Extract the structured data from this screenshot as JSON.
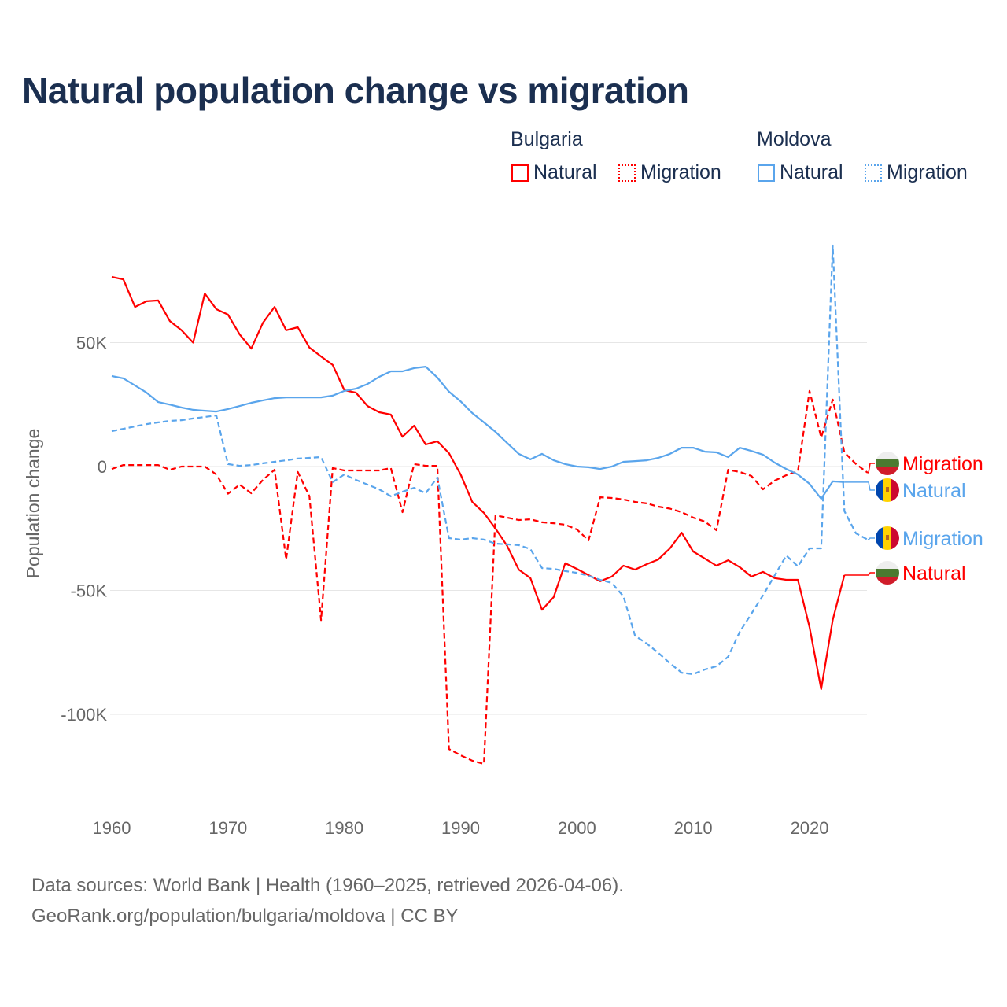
{
  "title": "Natural population change vs migration",
  "legend": {
    "groups": [
      {
        "name": "Bulgaria",
        "items": [
          {
            "label": "Natural",
            "style": "solid"
          },
          {
            "label": "Migration",
            "style": "dashed"
          }
        ]
      },
      {
        "name": "Moldova",
        "items": [
          {
            "label": "Natural",
            "style": "solid"
          },
          {
            "label": "Migration",
            "style": "dashed"
          }
        ]
      }
    ]
  },
  "footer": {
    "line1": "Data sources: World Bank | Health (1960–2025, retrieved 2026-04-06).",
    "line2": "GeoRank.org/population/bulgaria/moldova | CC BY"
  },
  "chart_data": {
    "type": "line",
    "title": "Natural population change vs migration",
    "ylabel": "Population change",
    "xlabel": "",
    "xlim": [
      1960,
      2025
    ],
    "ylim": [
      -125000,
      95000
    ],
    "xticks": [
      1960,
      1970,
      1980,
      1990,
      2000,
      2010,
      2020
    ],
    "yticks": [
      {
        "v": 50000,
        "label": "50K"
      },
      {
        "v": 0,
        "label": "0"
      },
      {
        "v": -50000,
        "label": "-50K"
      },
      {
        "v": -100000,
        "label": "-100K"
      }
    ],
    "grid": true,
    "series": [
      {
        "name": "Bulgaria Natural",
        "label": "Natural",
        "color": "#ff0000",
        "dash": false,
        "flag": "bulgaria",
        "start": 1960,
        "values": [
          76.5,
          75.5,
          64.4,
          66.7,
          67,
          58.7,
          55,
          50,
          69.8,
          63.5,
          61.3,
          53.3,
          47.6,
          58,
          64.4,
          55,
          56.2,
          48,
          44.4,
          41,
          30.8,
          29.8,
          24.4,
          21.9,
          21,
          12,
          16.5,
          8.9,
          10.2,
          5.4,
          -3.2,
          -14.3,
          -18.7,
          -25,
          -32,
          -41.6,
          -45,
          -57.8,
          -52.7,
          -39,
          -41.3,
          -43.8,
          -46.3,
          -44.4,
          -40,
          -41.6,
          -39.4,
          -37.5,
          -33,
          -26.7,
          -34.3,
          -37.1,
          -40,
          -37.8,
          -40.6,
          -44.4,
          -42.5,
          -45,
          -45.7,
          -45.7,
          -64.8,
          -89.8,
          -61.9,
          -43.8
        ]
      },
      {
        "name": "Bulgaria Migration",
        "label": "Migration",
        "color": "#ff0000",
        "dash": true,
        "flag": "bulgaria",
        "start": 1960,
        "values": [
          -1,
          0.6,
          0.6,
          0.6,
          0.6,
          -1.3,
          0,
          0,
          0,
          -3.2,
          -11,
          -7.3,
          -10.8,
          -5.4,
          -1.3,
          -37.5,
          -2.2,
          -12,
          -62,
          -0.6,
          -1.6,
          -1.6,
          -1.6,
          -1.6,
          -0.6,
          -18.4,
          1,
          0.3,
          0.3,
          -114,
          -116.5,
          -118.7,
          -120,
          -19.7,
          -20.6,
          -21.6,
          -21.3,
          -22.5,
          -22.9,
          -23.5,
          -25.4,
          -29.8,
          -12.4,
          -12.7,
          -13.3,
          -14.3,
          -14.9,
          -16.2,
          -17,
          -18.4,
          -20.6,
          -22.2,
          -25.7,
          -1.3,
          -2.2,
          -3.8,
          -9.2,
          -5.7,
          -3.5,
          -1.9,
          30.5,
          11.7,
          27,
          5.7,
          1,
          -2.5
        ]
      },
      {
        "name": "Moldova Natural",
        "label": "Natural",
        "color": "#5aa5ec",
        "dash": false,
        "flag": "moldova",
        "start": 1960,
        "values": [
          36.5,
          35.6,
          32.7,
          29.8,
          26,
          25,
          23.8,
          22.9,
          22.5,
          22.2,
          23.2,
          24.4,
          25.7,
          26.7,
          27.6,
          27.9,
          27.9,
          27.9,
          27.9,
          28.6,
          30.5,
          31.4,
          33.3,
          36.2,
          38.4,
          38.4,
          39.7,
          40.3,
          35.9,
          30.2,
          26.3,
          21.6,
          17.8,
          14,
          9.5,
          5.1,
          2.9,
          5.1,
          2.5,
          1,
          0,
          -0.3,
          -1,
          0,
          1.9,
          2.2,
          2.5,
          3.5,
          5.1,
          7.6,
          7.6,
          6,
          5.7,
          3.8,
          7.6,
          6.3,
          4.8,
          1.6,
          -1,
          -3.2,
          -7,
          -13,
          -6,
          -6.3
        ]
      },
      {
        "name": "Moldova Migration",
        "label": "Migration",
        "color": "#5aa5ec",
        "dash": true,
        "flag": "moldova",
        "start": 1960,
        "values": [
          14.3,
          15.2,
          16.2,
          17.1,
          17.8,
          18.4,
          18.7,
          19.4,
          20,
          20.6,
          1,
          0.3,
          0.6,
          1.3,
          1.9,
          2.5,
          3.2,
          3.5,
          3.8,
          -6.3,
          -3.2,
          -5.4,
          -7.3,
          -9.2,
          -12,
          -10.2,
          -8.6,
          -10.8,
          -4.4,
          -28.9,
          -29.5,
          -28.9,
          -29.5,
          -31.1,
          -31.4,
          -31.7,
          -33.3,
          -41,
          -41.3,
          -42.2,
          -42.9,
          -44.1,
          -45.7,
          -47,
          -52.4,
          -68.3,
          -71.4,
          -75.2,
          -79.4,
          -83.2,
          -83.8,
          -81.9,
          -80.6,
          -76.8,
          -66.7,
          -59.4,
          -52,
          -44,
          -35.9,
          -40.3,
          -33,
          -33,
          89.2,
          -18,
          -27,
          -29.5
        ]
      }
    ],
    "value_units": "thousands"
  }
}
